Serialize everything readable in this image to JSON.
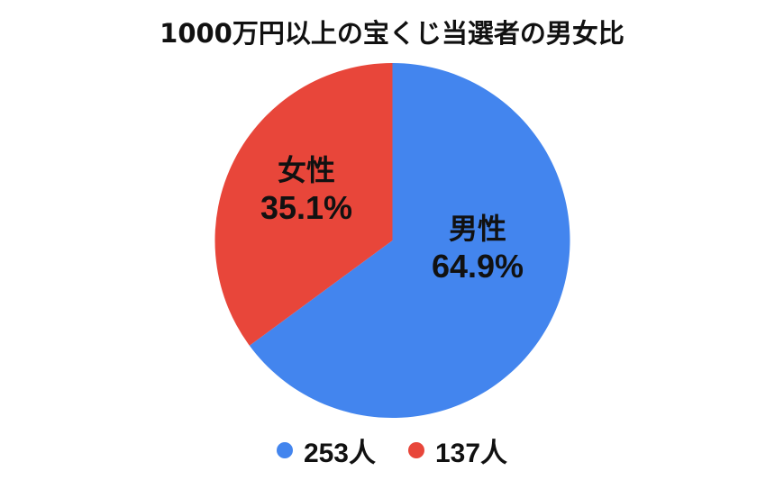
{
  "chart_data": {
    "type": "pie",
    "title": "1000万円以上の宝くじ当選者の男女比",
    "categories": [
      "男性",
      "女性"
    ],
    "values": [
      64.9,
      35.1
    ],
    "counts": [
      253,
      137
    ],
    "colors": [
      "#4385ee",
      "#e8463a"
    ],
    "slice_labels": [
      "男性 64.9%",
      "女性 35.1%"
    ],
    "legend": [
      "253人",
      "137人"
    ],
    "legend_position": "bottom"
  },
  "title": "1000万円以上の宝くじ当選者の男女比",
  "slices": {
    "male": {
      "name": "男性",
      "pct": "64.9%"
    },
    "female": {
      "name": "女性",
      "pct": "35.1%"
    }
  },
  "legend": {
    "male": "253人",
    "female": "137人"
  }
}
